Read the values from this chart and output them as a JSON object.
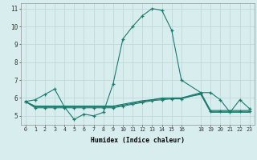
{
  "xlabel": "Humidex (Indice chaleur)",
  "bg_color": "#d8eeee",
  "grid_color": "#c2d8d8",
  "line_color": "#1a7a6e",
  "xlim": [
    -0.5,
    23.5
  ],
  "ylim": [
    4.5,
    11.3
  ],
  "xticks": [
    0,
    1,
    2,
    3,
    4,
    5,
    6,
    7,
    8,
    9,
    10,
    11,
    12,
    13,
    14,
    15,
    16,
    18,
    19,
    20,
    21,
    22,
    23
  ],
  "yticks": [
    5,
    6,
    7,
    8,
    9,
    10,
    11
  ],
  "line1_x": [
    0,
    1,
    2,
    3,
    4,
    5,
    6,
    7,
    8,
    9,
    10,
    11,
    12,
    13,
    14,
    15,
    16,
    18,
    19,
    20,
    21,
    22,
    23
  ],
  "line1_y": [
    5.8,
    5.9,
    6.2,
    6.5,
    5.5,
    4.8,
    5.1,
    5.0,
    5.2,
    6.8,
    9.3,
    10.0,
    10.6,
    11.0,
    10.9,
    9.8,
    7.0,
    6.3,
    6.3,
    5.9,
    5.2,
    5.9,
    5.4
  ],
  "line2_x": [
    0,
    1,
    2,
    3,
    4,
    5,
    6,
    7,
    8,
    9,
    10,
    11,
    12,
    13,
    14,
    15,
    16,
    18,
    19,
    20,
    21,
    22,
    23
  ],
  "line2_y": [
    5.8,
    5.45,
    5.45,
    5.45,
    5.45,
    5.45,
    5.45,
    5.45,
    5.45,
    5.45,
    5.55,
    5.65,
    5.75,
    5.85,
    5.9,
    5.95,
    5.95,
    6.25,
    5.25,
    5.25,
    5.25,
    5.25,
    5.25
  ],
  "line3_x": [
    0,
    1,
    2,
    3,
    4,
    5,
    6,
    7,
    8,
    9,
    10,
    11,
    12,
    13,
    14,
    15,
    16,
    18,
    19,
    20,
    21,
    22,
    23
  ],
  "line3_y": [
    5.8,
    5.5,
    5.5,
    5.5,
    5.5,
    5.5,
    5.5,
    5.5,
    5.5,
    5.5,
    5.6,
    5.7,
    5.8,
    5.9,
    6.0,
    6.0,
    6.0,
    6.3,
    5.3,
    5.3,
    5.3,
    5.3,
    5.3
  ],
  "line4_x": [
    0,
    1,
    2,
    3,
    4,
    5,
    6,
    7,
    8,
    9,
    10,
    11,
    12,
    13,
    14,
    15,
    16,
    18,
    19,
    20,
    21,
    22,
    23
  ],
  "line4_y": [
    5.8,
    5.55,
    5.55,
    5.55,
    5.55,
    5.55,
    5.55,
    5.55,
    5.55,
    5.55,
    5.65,
    5.75,
    5.85,
    5.9,
    5.95,
    6.0,
    6.0,
    6.2,
    5.2,
    5.2,
    5.2,
    5.2,
    5.2
  ]
}
